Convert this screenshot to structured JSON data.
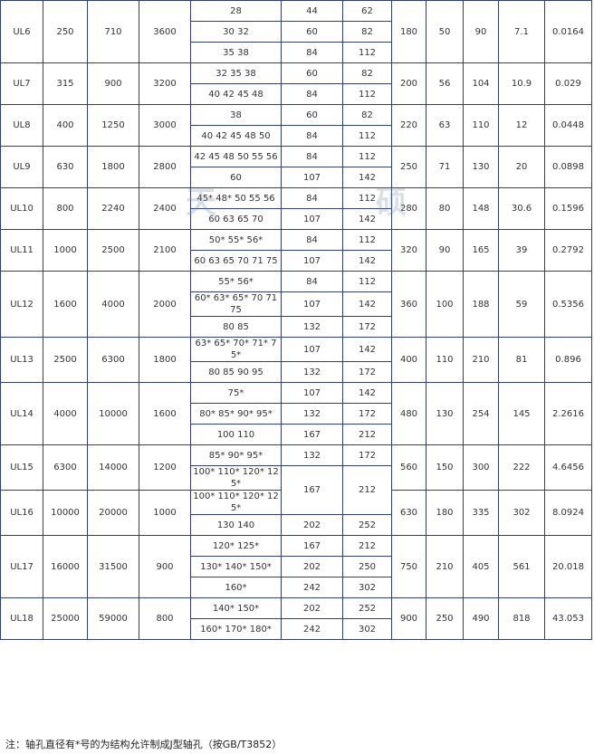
{
  "table": {
    "groups": [
      {
        "model": "UL6",
        "specs": [
          "250",
          "710",
          "3600"
        ],
        "bores": [
          {
            "d": "28",
            "l1": "44",
            "l2": "62"
          },
          {
            "d": "30 32",
            "l1": "60",
            "l2": "82"
          },
          {
            "d": "35 38",
            "l1": "84",
            "l2": "112"
          }
        ],
        "dims": [
          "180",
          "50",
          "90",
          "7.1",
          "0.0164"
        ]
      },
      {
        "model": "UL7",
        "specs": [
          "315",
          "900",
          "3200"
        ],
        "bores": [
          {
            "d": "32 35 38",
            "l1": "60",
            "l2": "82"
          },
          {
            "d": "40 42 45 48",
            "l1": "84",
            "l2": "112"
          }
        ],
        "dims": [
          "200",
          "56",
          "104",
          "10.9",
          "0.029"
        ]
      },
      {
        "model": "UL8",
        "specs": [
          "400",
          "1250",
          "3000"
        ],
        "bores": [
          {
            "d": "38",
            "l1": "60",
            "l2": "82"
          },
          {
            "d": "40 42 45 48 50",
            "l1": "84",
            "l2": "112"
          }
        ],
        "dims": [
          "220",
          "63",
          "110",
          "12",
          "0.0448"
        ]
      },
      {
        "model": "UL9",
        "specs": [
          "630",
          "1800",
          "2800"
        ],
        "bores": [
          {
            "d": "42 45 48 50 55 56",
            "l1": "84",
            "l2": "112"
          },
          {
            "d": "60",
            "l1": "107",
            "l2": "142"
          }
        ],
        "dims": [
          "250",
          "71",
          "130",
          "20",
          "0.0898"
        ]
      },
      {
        "model": "UL10",
        "specs": [
          "800",
          "2240",
          "2400"
        ],
        "bores": [
          {
            "d": "45* 48* 50 55 56",
            "l1": "84",
            "l2": "112"
          },
          {
            "d": "60 63 65 70",
            "l1": "107",
            "l2": "142"
          }
        ],
        "dims": [
          "280",
          "80",
          "148",
          "30.6",
          "0.1596"
        ]
      },
      {
        "model": "UL11",
        "specs": [
          "1000",
          "2500",
          "2100"
        ],
        "bores": [
          {
            "d": "50* 55* 56*",
            "l1": "84",
            "l2": "112"
          },
          {
            "d": "60 63 65 70 71 75",
            "l1": "107",
            "l2": "142"
          }
        ],
        "dims": [
          "320",
          "90",
          "165",
          "39",
          "0.2792"
        ]
      },
      {
        "model": "UL12",
        "specs": [
          "1600",
          "4000",
          "2000"
        ],
        "bores": [
          {
            "d": "55* 56*",
            "l1": "84",
            "l2": "112"
          },
          {
            "d": "60* 63* 65* 70 71 75",
            "l1": "107",
            "l2": "142"
          },
          {
            "d": "80 85",
            "l1": "132",
            "l2": "172"
          }
        ],
        "dims": [
          "360",
          "100",
          "188",
          "59",
          "0.5356"
        ]
      },
      {
        "model": "UL13",
        "specs": [
          "2500",
          "6300",
          "1800"
        ],
        "bores": [
          {
            "d": "63* 65* 70* 71* 75*",
            "l1": "107",
            "l2": "142"
          },
          {
            "d": "80 85 90 95",
            "l1": "132",
            "l2": "172"
          }
        ],
        "dims": [
          "400",
          "110",
          "210",
          "81",
          "0.896"
        ]
      },
      {
        "model": "UL14",
        "specs": [
          "4000",
          "10000",
          "1600"
        ],
        "bores": [
          {
            "d": "75*",
            "l1": "107",
            "l2": "142"
          },
          {
            "d": "80* 85* 90* 95*",
            "l1": "132",
            "l2": "172"
          },
          {
            "d": "100 110",
            "l1": "167",
            "l2": "212"
          }
        ],
        "dims": [
          "480",
          "130",
          "254",
          "145",
          "2.2616"
        ]
      },
      {
        "model": "UL15",
        "specs": [
          "6300",
          "14000",
          "1200"
        ],
        "bores": [
          {
            "d": "85* 90* 95*",
            "l1": "132",
            "l2": "172"
          },
          {
            "d": "100* 110* 120* 125*",
            "l1": "167",
            "l2": "212"
          }
        ],
        "dims": [
          "560",
          "150",
          "300",
          "222",
          "4.6456"
        ]
      },
      {
        "model": "UL16",
        "specs": [
          "10000",
          "20000",
          "1000"
        ],
        "bores": [
          {
            "d": "100* 110* 120* 125*"
          },
          {
            "d": "130 140",
            "l1": "202",
            "l2": "252"
          }
        ],
        "dims": [
          "630",
          "180",
          "335",
          "302",
          "8.0924"
        ]
      },
      {
        "model": "UL17",
        "specs": [
          "16000",
          "31500",
          "900"
        ],
        "bores": [
          {
            "d": "120* 125*",
            "l1": "167",
            "l2": "212"
          },
          {
            "d": "130* 140* 150*",
            "l1": "202",
            "l2": "250"
          },
          {
            "d": "160*",
            "l1": "242",
            "l2": "302"
          }
        ],
        "dims": [
          "750",
          "210",
          "405",
          "561",
          "20.018"
        ]
      },
      {
        "model": "UL18",
        "specs": [
          "25000",
          "59000",
          "800"
        ],
        "bores": [
          {
            "d": "140* 150*",
            "l1": "202",
            "l2": "252"
          },
          {
            "d": "160* 170* 180*",
            "l1": "242",
            "l2": "302"
          }
        ],
        "dims": [
          "900",
          "250",
          "490",
          "818",
          "43.053"
        ]
      }
    ],
    "watermark": [
      "天",
      "硕"
    ],
    "note": "注：轴孔直径有*号的为结构允许制成J型轴孔（按GB/T3852）"
  }
}
